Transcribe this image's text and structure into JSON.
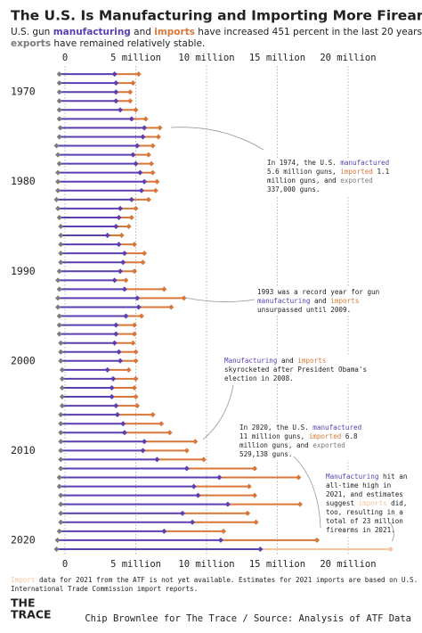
{
  "chart_data": {
    "type": "dumbbell",
    "title": "The U.S. Is Manufacturing and Importing More Firearms",
    "subtitle": {
      "lines": [
        [
          "U.S. gun ",
          {
            "text": "manufacturing",
            "color": "#5b3fb0"
          },
          " and ",
          {
            "text": "imports",
            "color": "#d9773a"
          },
          " have increased 451 percent in the last 20 years, while"
        ],
        [
          {
            "text": "exports",
            "color": "#7a7a7a"
          },
          " have remained relatively stable."
        ]
      ]
    },
    "years": [
      1968,
      1969,
      1970,
      1971,
      1972,
      1973,
      1974,
      1975,
      1976,
      1977,
      1978,
      1979,
      1980,
      1981,
      1982,
      1983,
      1984,
      1985,
      1986,
      1987,
      1988,
      1989,
      1990,
      1991,
      1992,
      1993,
      1994,
      1995,
      1996,
      1997,
      1998,
      1999,
      2000,
      2001,
      2002,
      2003,
      2004,
      2005,
      2006,
      2007,
      2008,
      2009,
      2010,
      2011,
      2012,
      2013,
      2014,
      2015,
      2016,
      2017,
      2018,
      2019,
      2020,
      2021
    ],
    "ylim": [
      1966.5,
      2022
    ],
    "yticks": [
      1970,
      1980,
      1990,
      2000,
      2010,
      2020
    ],
    "xlim": [
      -0.6,
      23.5
    ],
    "xticks": [
      0,
      {
        "value": 5,
        "label": "5 million"
      },
      {
        "value": 10,
        "label": "10 million"
      },
      {
        "value": 15,
        "label": "15 million"
      },
      {
        "value": 20,
        "label": "20 million"
      }
    ],
    "grid": true,
    "series": [
      {
        "name": "manufacturing",
        "color": "#5b3fb0",
        "values": [
          3.5,
          3.6,
          3.6,
          3.6,
          3.9,
          4.7,
          5.6,
          5.5,
          5.1,
          4.8,
          5.0,
          5.3,
          5.6,
          5.4,
          4.7,
          3.9,
          3.8,
          3.6,
          3.0,
          3.8,
          4.2,
          4.1,
          3.9,
          3.5,
          4.2,
          5.1,
          5.2,
          4.3,
          3.6,
          3.6,
          3.5,
          3.8,
          3.9,
          3.0,
          3.4,
          3.3,
          3.3,
          3.6,
          3.7,
          4.1,
          4.2,
          5.6,
          5.5,
          6.5,
          8.6,
          10.9,
          9.1,
          9.4,
          11.5,
          8.3,
          9.0,
          7.0,
          11.0,
          13.8
        ]
      },
      {
        "name": "imports",
        "color": "#d9773a",
        "values": [
          1.7,
          1.2,
          1.0,
          1.0,
          1.1,
          1.0,
          1.1,
          1.1,
          1.1,
          1.1,
          1.1,
          0.9,
          0.9,
          1.0,
          1.2,
          1.1,
          0.9,
          0.9,
          1.0,
          1.1,
          1.4,
          1.4,
          1.0,
          0.8,
          2.8,
          3.3,
          2.3,
          1.1,
          1.3,
          1.3,
          1.3,
          1.2,
          1.1,
          1.5,
          1.6,
          1.6,
          1.7,
          1.5,
          2.5,
          2.7,
          3.2,
          3.6,
          3.1,
          3.3,
          4.8,
          5.6,
          3.9,
          4.0,
          5.1,
          4.6,
          4.5,
          4.2,
          6.8,
          9.2
        ],
        "colors": [
          "#d9773a",
          "#d9773a",
          "#d9773a",
          "#d9773a",
          "#d9773a",
          "#d9773a",
          "#d9773a",
          "#d9773a",
          "#d9773a",
          "#d9773a",
          "#d9773a",
          "#d9773a",
          "#d9773a",
          "#d9773a",
          "#d9773a",
          "#d9773a",
          "#d9773a",
          "#d9773a",
          "#d9773a",
          "#d9773a",
          "#d9773a",
          "#d9773a",
          "#d9773a",
          "#d9773a",
          "#d9773a",
          "#d9773a",
          "#d9773a",
          "#d9773a",
          "#d9773a",
          "#d9773a",
          "#d9773a",
          "#d9773a",
          "#d9773a",
          "#d9773a",
          "#d9773a",
          "#d9773a",
          "#d9773a",
          "#d9773a",
          "#d9773a",
          "#d9773a",
          "#d9773a",
          "#d9773a",
          "#d9773a",
          "#d9773a",
          "#d9773a",
          "#d9773a",
          "#d9773a",
          "#d9773a",
          "#d9773a",
          "#d9773a",
          "#d9773a",
          "#d9773a",
          "#d9773a",
          "#f5c4a0"
        ]
      },
      {
        "name": "exports",
        "color": "#7a7a7a",
        "values": [
          0.4,
          0.4,
          0.4,
          0.4,
          0.4,
          0.4,
          0.337,
          0.4,
          0.6,
          0.5,
          0.4,
          0.5,
          0.5,
          0.5,
          0.6,
          0.5,
          0.4,
          0.3,
          0.3,
          0.3,
          0.3,
          0.3,
          0.4,
          0.5,
          0.4,
          0.5,
          0.5,
          0.4,
          0.4,
          0.4,
          0.3,
          0.3,
          0.3,
          0.2,
          0.2,
          0.2,
          0.2,
          0.2,
          0.3,
          0.3,
          0.3,
          0.3,
          0.3,
          0.3,
          0.3,
          0.4,
          0.4,
          0.3,
          0.3,
          0.3,
          0.3,
          0.4,
          0.529,
          0.6
        ]
      }
    ],
    "annotations": [
      {
        "lines": [
          [
            "In 1974, the U.S. ",
            {
              "text": "manufactured",
              "color": "#5b3fb0"
            }
          ],
          [
            "5.6 million guns, ",
            {
              "text": "imported",
              "color": "#d9773a"
            },
            " 1.1"
          ],
          [
            "million guns, and ",
            {
              "text": "exported",
              "color": "#7a7a7a"
            }
          ],
          [
            "337,000 guns."
          ]
        ]
      },
      {
        "lines": [
          [
            "1993 was a record year for gun"
          ],
          [
            {
              "text": "manufacturing",
              "color": "#5b3fb0"
            },
            " and ",
            {
              "text": "imports",
              "color": "#d9773a"
            }
          ],
          [
            "unsurpassed until 2009."
          ]
        ]
      },
      {
        "lines": [
          [
            {
              "text": "Manufacturing",
              "color": "#5b3fb0"
            },
            " and ",
            {
              "text": "imports",
              "color": "#d9773a"
            }
          ],
          [
            "skyrocketed after President Obama's"
          ],
          [
            "election in 2008."
          ]
        ]
      },
      {
        "lines": [
          [
            "In 2020, the U.S. ",
            {
              "text": "manufactured",
              "color": "#5b3fb0"
            }
          ],
          [
            "11 million guns, ",
            {
              "text": "imported",
              "color": "#d9773a"
            },
            " 6.8"
          ],
          [
            "million guns, and ",
            {
              "text": "exported",
              "color": "#7a7a7a"
            }
          ],
          [
            "529,138 guns."
          ]
        ]
      },
      {
        "lines": [
          [
            {
              "text": "Manufacturing",
              "color": "#5b3fb0"
            },
            " hit an"
          ],
          [
            "all-time high in"
          ],
          [
            "2021, and estimates"
          ],
          [
            "suggest ",
            {
              "text": "imports",
              "color": "#f5c4a0"
            },
            " did,"
          ],
          [
            "too, resulting in a"
          ],
          [
            "total of 23 million"
          ],
          [
            "firearms in 2021."
          ]
        ]
      }
    ],
    "footnote": {
      "lines": [
        [
          {
            "text": "Import",
            "color": "#f5c4a0"
          },
          " data for 2021 from the ATF is not yet available. Estimates for 2021 imports are based on U.S."
        ],
        [
          "International Trade Commission import reports."
        ]
      ]
    },
    "logo": [
      "THE",
      "TRACE"
    ],
    "credit": "Chip Brownlee for The Trace / Source: Analysis of ATF Data"
  }
}
